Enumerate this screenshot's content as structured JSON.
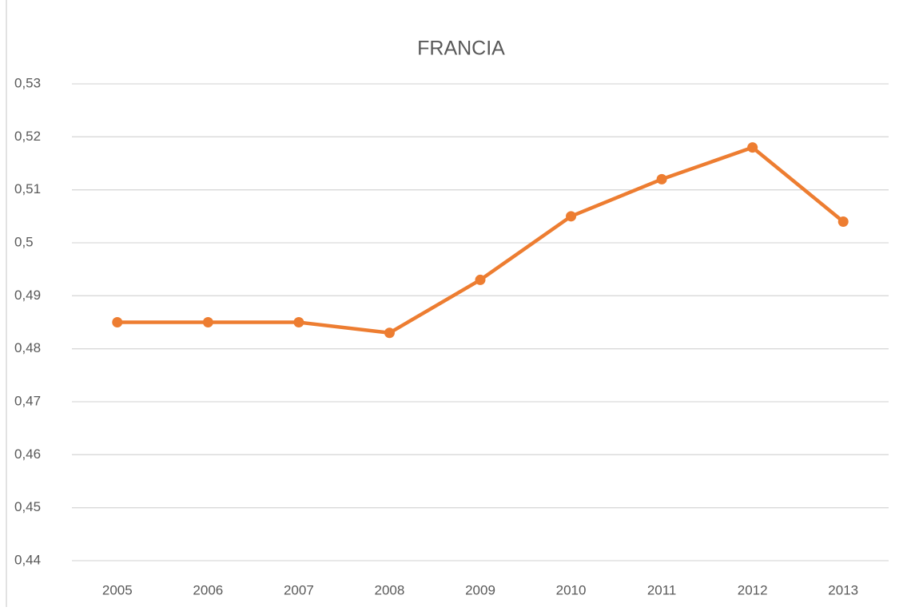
{
  "chart_data": {
    "type": "line",
    "title": "FRANCIA",
    "categories": [
      "2005",
      "2006",
      "2007",
      "2008",
      "2009",
      "2010",
      "2011",
      "2012",
      "2013"
    ],
    "values": [
      0.485,
      0.485,
      0.485,
      0.483,
      0.493,
      0.505,
      0.512,
      0.518,
      0.504
    ],
    "color": "#ed7d31",
    "ylim": [
      0.44,
      0.53
    ],
    "yticks": [
      {
        "value": 0.44,
        "label": "0,44"
      },
      {
        "value": 0.45,
        "label": "0,45"
      },
      {
        "value": 0.46,
        "label": "0,46"
      },
      {
        "value": 0.47,
        "label": "0,47"
      },
      {
        "value": 0.48,
        "label": "0,48"
      },
      {
        "value": 0.49,
        "label": "0,49"
      },
      {
        "value": 0.5,
        "label": "0,5"
      },
      {
        "value": 0.51,
        "label": "0,51"
      },
      {
        "value": 0.52,
        "label": "0,52"
      },
      {
        "value": 0.53,
        "label": "0,53"
      }
    ],
    "grid": true
  }
}
